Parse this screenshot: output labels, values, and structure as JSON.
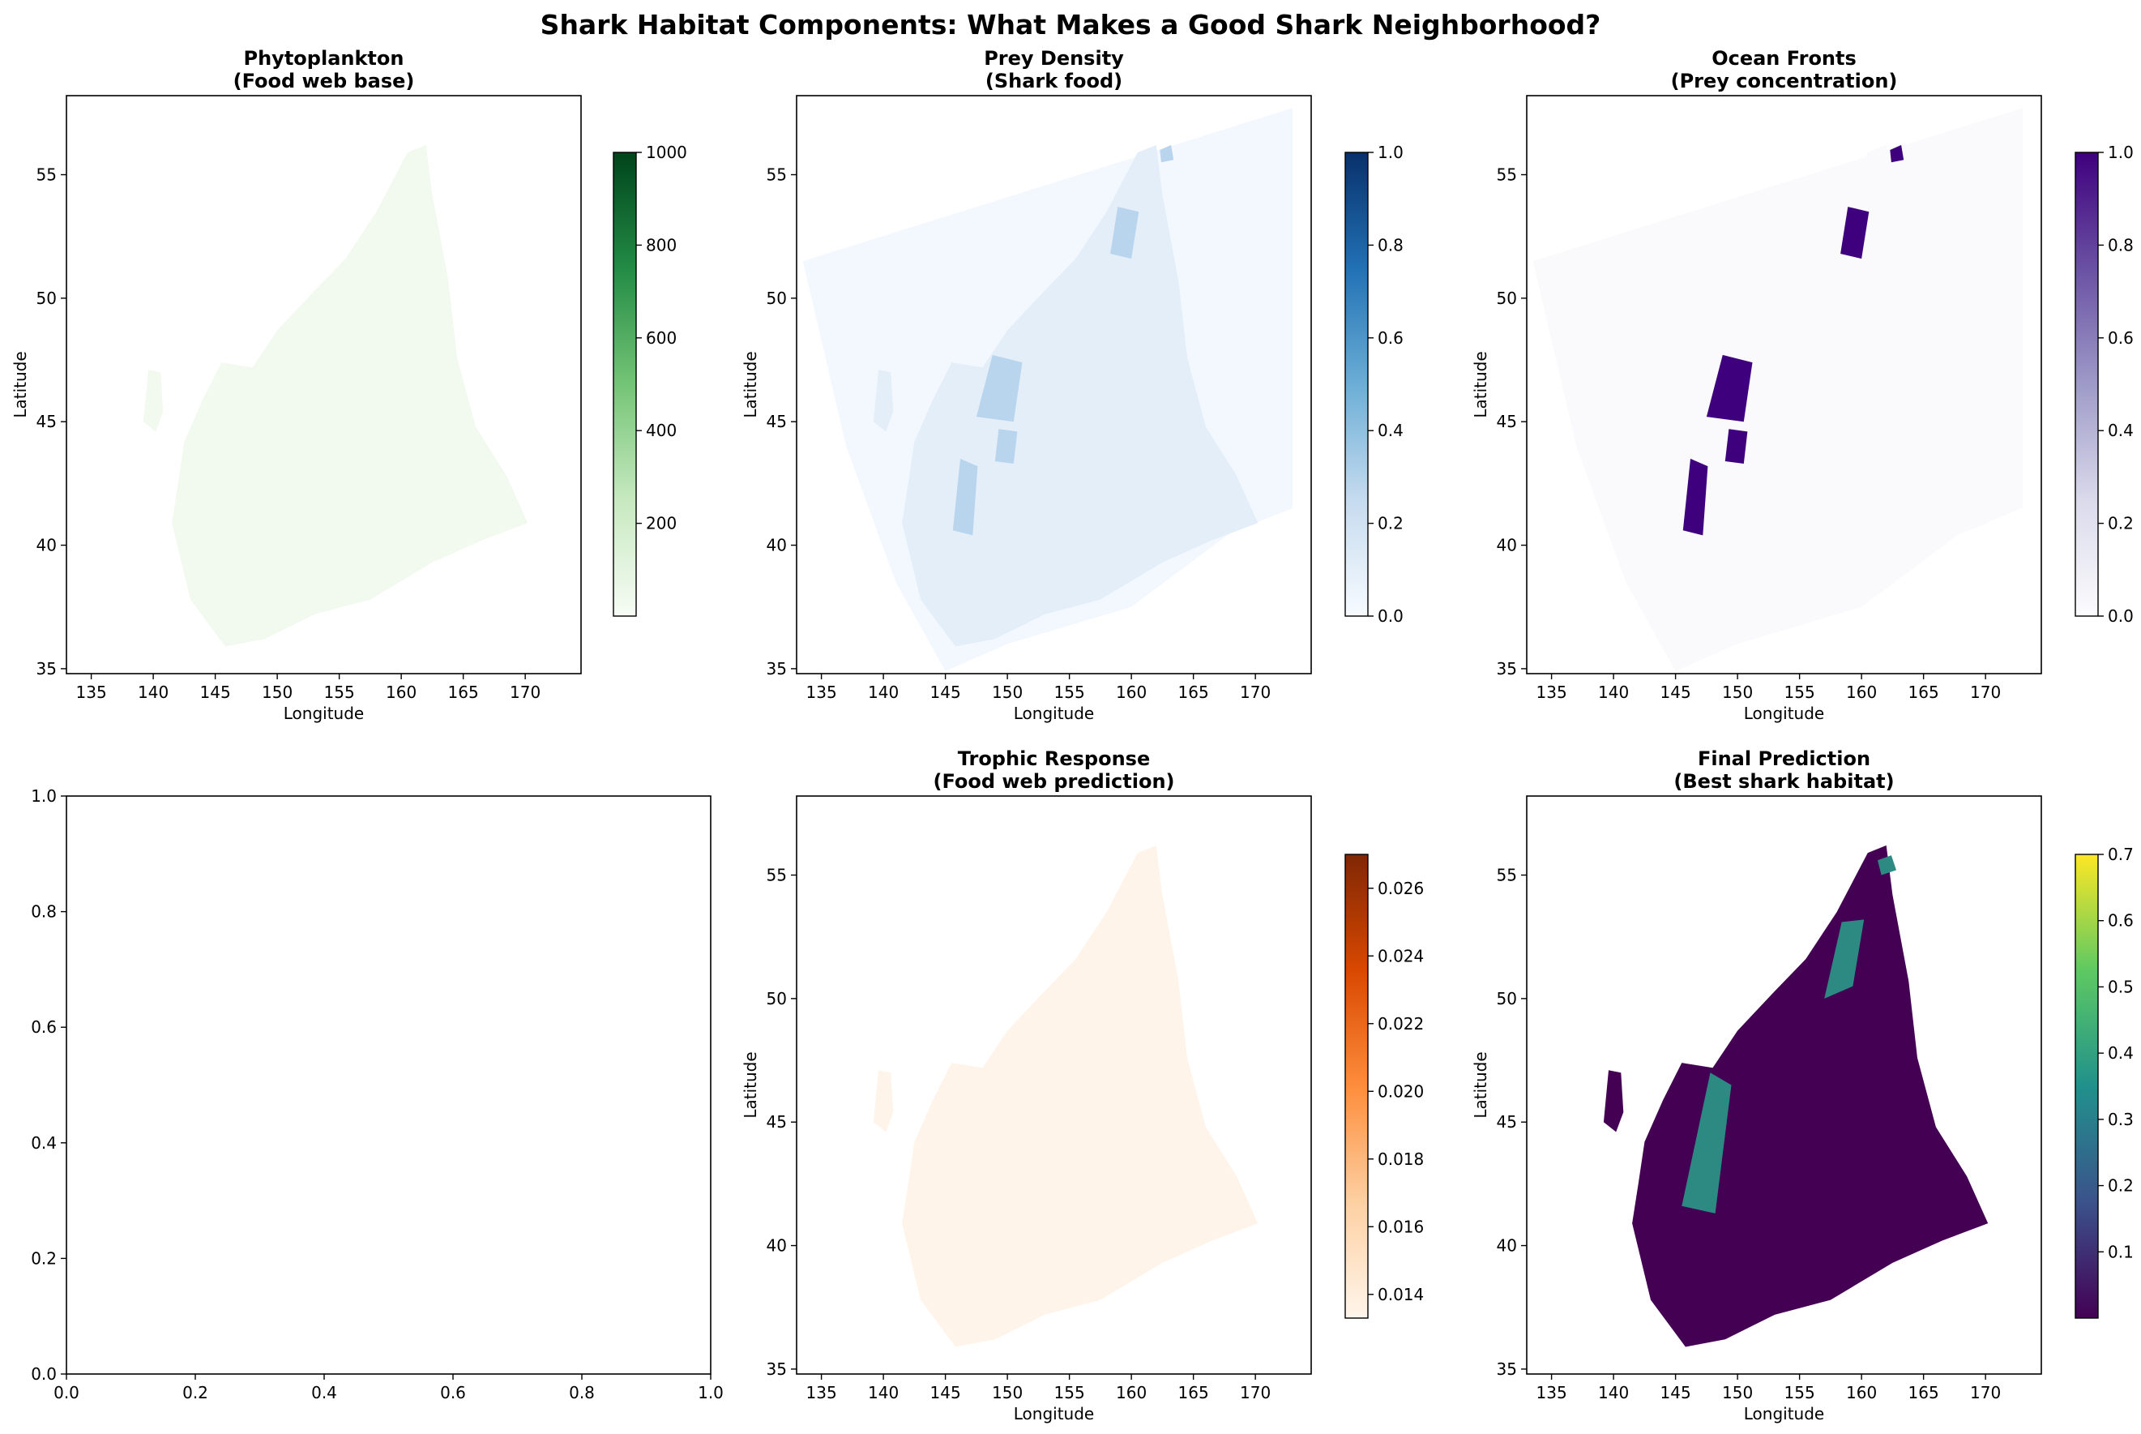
{
  "figure": {
    "title": "Shark Habitat Components: What Makes a Good Shark Neighborhood?"
  },
  "chart_data": [
    {
      "id": "phytoplankton",
      "type": "heatmap",
      "title": "Phytoplankton",
      "subtitle": "(Food web base)",
      "xlabel": "Longitude",
      "ylabel": "Latitude",
      "xlim": [
        133,
        174.5
      ],
      "ylim": [
        34.8,
        58.2
      ],
      "xticks": [
        135,
        140,
        145,
        150,
        155,
        160,
        165,
        170
      ],
      "yticks": [
        35,
        40,
        45,
        50,
        55
      ],
      "colorbar": {
        "colormap": "Greens",
        "range": [
          0,
          1000
        ],
        "ticks": [
          200,
          400,
          600,
          800,
          1000
        ],
        "colors": [
          "#f7fcf5",
          "#c7e9c0",
          "#74c476",
          "#238b45",
          "#00441b"
        ]
      },
      "fill": {
        "color": "#f2faef",
        "note_level": "low"
      }
    },
    {
      "id": "prey-density",
      "type": "heatmap",
      "title": "Prey Density",
      "subtitle": "(Shark food)",
      "xlabel": "Longitude",
      "ylabel": "Latitude",
      "xlim": [
        133,
        174.5
      ],
      "ylim": [
        34.8,
        58.2
      ],
      "xticks": [
        135,
        140,
        145,
        150,
        155,
        160,
        165,
        170
      ],
      "yticks": [
        35,
        40,
        45,
        50,
        55
      ],
      "colorbar": {
        "colormap": "Blues",
        "range": [
          0,
          1
        ],
        "ticks": [
          0.0,
          0.2,
          0.4,
          0.6,
          0.8,
          1.0
        ],
        "colors": [
          "#f7fbff",
          "#c6dbef",
          "#6baed6",
          "#2171b5",
          "#08306b"
        ]
      },
      "fill": {
        "color": "#f3f8fe"
      }
    },
    {
      "id": "ocean-fronts",
      "type": "heatmap",
      "title": "Ocean Fronts",
      "subtitle": "(Prey concentration)",
      "xlabel": "Longitude",
      "ylabel": "Latitude",
      "xlim": [
        133,
        174.5
      ],
      "ylim": [
        34.8,
        58.2
      ],
      "xticks": [
        135,
        140,
        145,
        150,
        155,
        160,
        165,
        170
      ],
      "yticks": [
        35,
        40,
        45,
        50,
        55
      ],
      "colorbar": {
        "colormap": "Purples",
        "range": [
          0,
          1
        ],
        "ticks": [
          0.0,
          0.2,
          0.4,
          0.6,
          0.8,
          1.0
        ],
        "colors": [
          "#fcfbfd",
          "#dadaeb",
          "#9e9ac8",
          "#6a51a3",
          "#3f007d"
        ]
      },
      "fill": {
        "color": "#fafafd"
      },
      "highlight_color": "#3f007d"
    },
    {
      "id": "empty-axes",
      "type": "scatter",
      "title": "",
      "xlim": [
        0,
        1
      ],
      "ylim": [
        0,
        1
      ],
      "xticks": [
        0.0,
        0.2,
        0.4,
        0.6,
        0.8,
        1.0
      ],
      "yticks": [
        0.0,
        0.2,
        0.4,
        0.6,
        0.8,
        1.0
      ],
      "series": []
    },
    {
      "id": "trophic-response",
      "type": "heatmap",
      "title": "Trophic Response",
      "subtitle": "(Food web prediction)",
      "xlabel": "Longitude",
      "ylabel": "Latitude",
      "xlim": [
        133,
        174.5
      ],
      "ylim": [
        34.8,
        58.2
      ],
      "xticks": [
        135,
        140,
        145,
        150,
        155,
        160,
        165,
        170
      ],
      "yticks": [
        35,
        40,
        45,
        50,
        55
      ],
      "colorbar": {
        "colormap": "Oranges",
        "range": [
          0.0133,
          0.027
        ],
        "ticks": [
          0.014,
          0.016,
          0.018,
          0.02,
          0.022,
          0.024,
          0.026
        ],
        "colors": [
          "#fff5eb",
          "#fdd0a2",
          "#fd8d3c",
          "#d94801",
          "#7f2704"
        ]
      },
      "fill": {
        "color": "#fff4ea"
      }
    },
    {
      "id": "final-prediction",
      "type": "heatmap",
      "title": "Final Prediction",
      "subtitle": "(Best shark habitat)",
      "xlabel": "Longitude",
      "ylabel": "Latitude",
      "xlim": [
        133,
        174.5
      ],
      "ylim": [
        34.8,
        58.2
      ],
      "xticks": [
        135,
        140,
        145,
        150,
        155,
        160,
        165,
        170
      ],
      "yticks": [
        35,
        40,
        45,
        50,
        55
      ],
      "colorbar": {
        "colormap": "viridis",
        "range": [
          0,
          0.7
        ],
        "ticks": [
          0.1,
          0.2,
          0.3,
          0.4,
          0.5,
          0.6,
          0.7
        ],
        "colors": [
          "#440154",
          "#3b528b",
          "#21918c",
          "#5ec962",
          "#fde725"
        ]
      },
      "fill": {
        "color": "#440154"
      },
      "highlight_color": "#2c8a82"
    }
  ]
}
